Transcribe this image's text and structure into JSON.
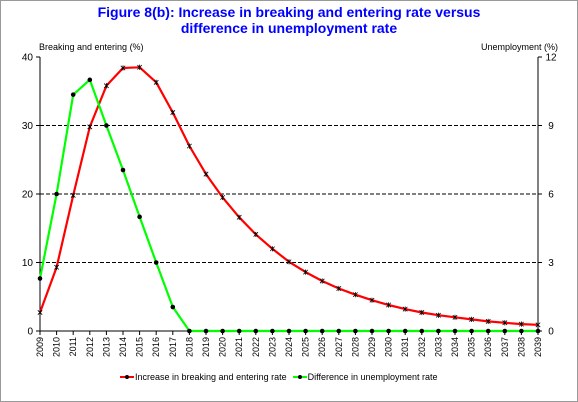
{
  "colors": {
    "title": "#0000ff",
    "series_red": "#ff0000",
    "series_green": "#00ff00",
    "marker": "#000000"
  },
  "chart_data": {
    "type": "line",
    "title_line1": "Figure 8(b):  Increase in breaking and entering rate versus",
    "title_line2": "difference in unemployment rate",
    "ylabel_left": "Breaking and entering (%)",
    "ylabel_right": "Unemployment (%)",
    "x": [
      "2009",
      "2010",
      "2011",
      "2012",
      "2013",
      "2014",
      "2015",
      "2016",
      "2017",
      "2018",
      "2019",
      "2020",
      "2021",
      "2022",
      "2023",
      "2024",
      "2025",
      "2026",
      "2027",
      "2028",
      "2029",
      "2030",
      "2031",
      "2032",
      "2033",
      "2034",
      "2035",
      "2036",
      "2037",
      "2038",
      "2039"
    ],
    "ylim_left": [
      0,
      40
    ],
    "yticks_left": [
      0,
      10,
      20,
      30,
      40
    ],
    "ylim_right": [
      0,
      12
    ],
    "yticks_right": [
      0,
      3,
      6,
      9,
      12
    ],
    "grid": "horizontal dashed at left ticks 10, 20, 30",
    "legend_position": "bottom",
    "series": [
      {
        "name": "Increase in breaking and entering rate",
        "axis": "left",
        "color": "#ff0000",
        "marker": "star",
        "values": [
          2.7,
          9.3,
          19.8,
          29.8,
          35.8,
          38.4,
          38.5,
          36.3,
          31.9,
          27.0,
          22.9,
          19.5,
          16.6,
          14.1,
          12.0,
          10.1,
          8.6,
          7.3,
          6.2,
          5.3,
          4.5,
          3.8,
          3.2,
          2.7,
          2.3,
          2.0,
          1.7,
          1.4,
          1.2,
          1.0,
          0.9
        ]
      },
      {
        "name": "Difference in unemployment rate",
        "axis": "right",
        "color": "#00ff00",
        "marker": "dot",
        "values": [
          2.3,
          6.0,
          10.35,
          11.0,
          9.0,
          7.05,
          5.0,
          3.0,
          1.05,
          0,
          0,
          0,
          0,
          0,
          0,
          0,
          0,
          0,
          0,
          0,
          0,
          0,
          0,
          0,
          0,
          0,
          0,
          0,
          0,
          0,
          0
        ]
      }
    ]
  }
}
